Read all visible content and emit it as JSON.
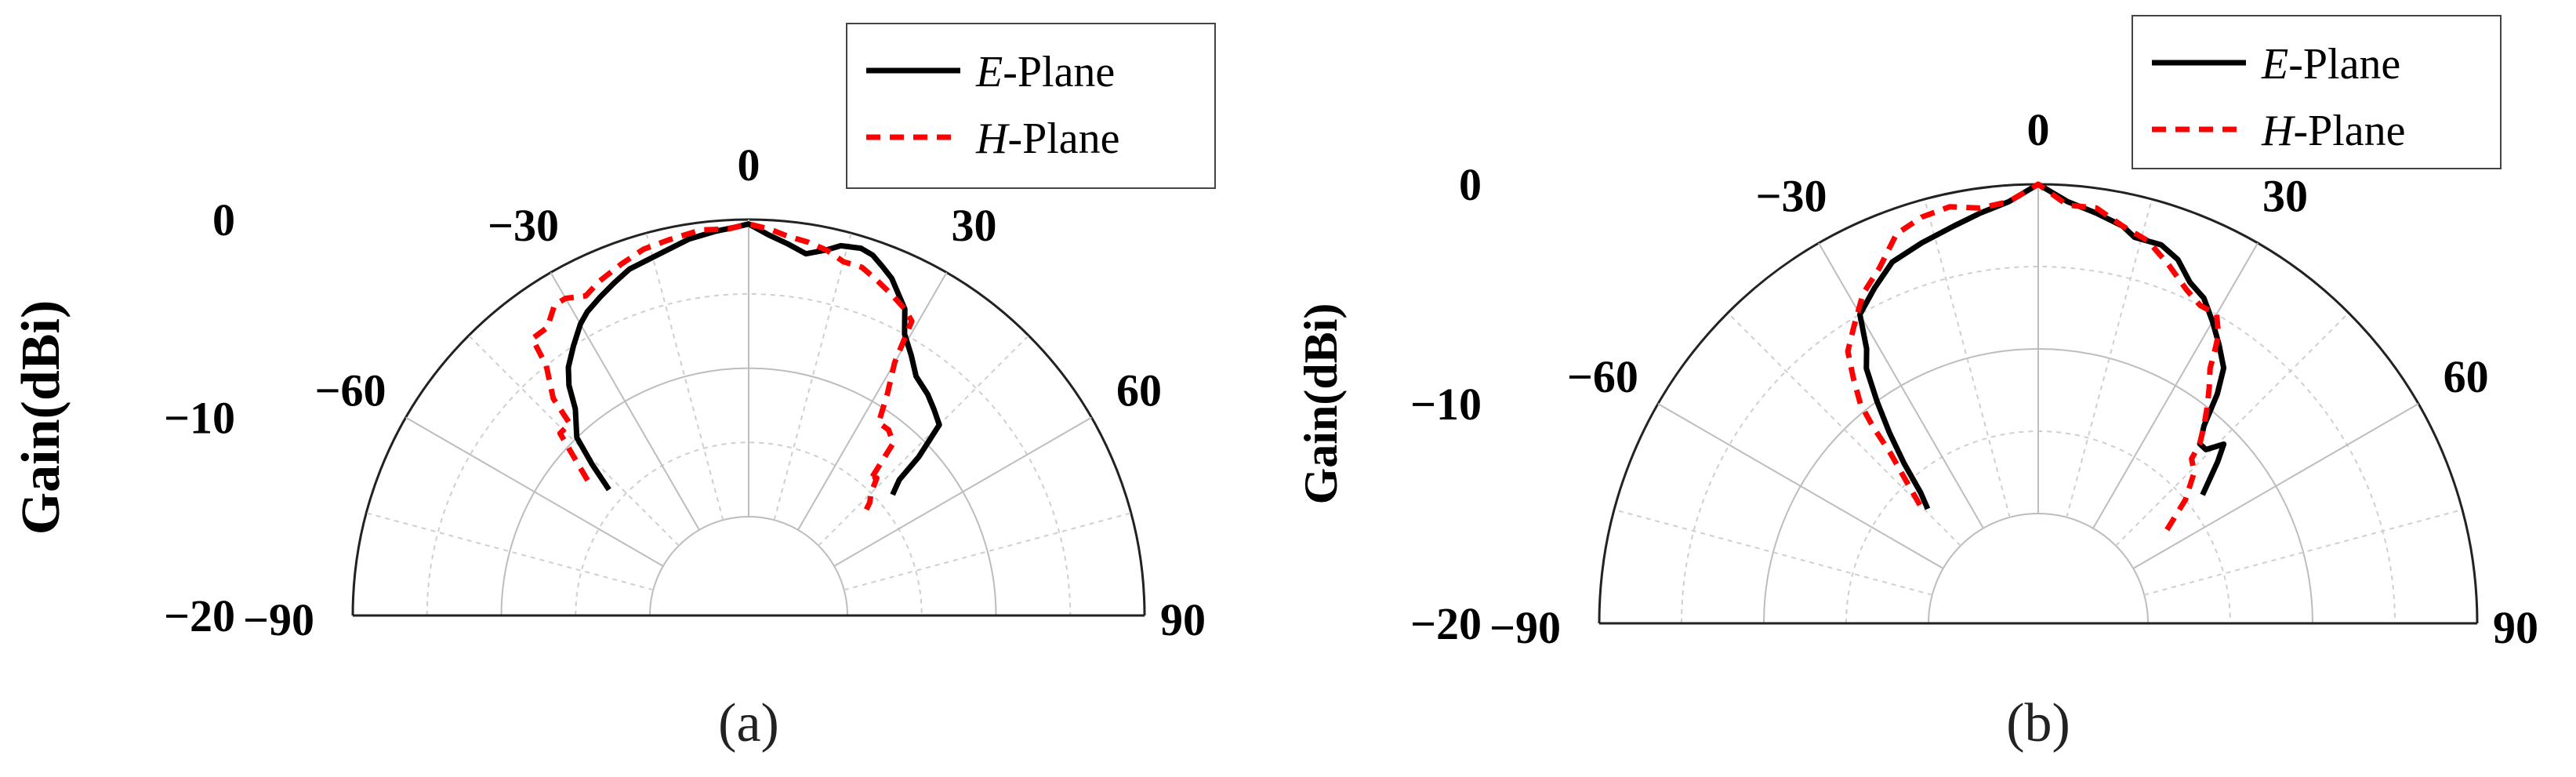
{
  "chart_data": [
    {
      "type": "polar-line",
      "caption": "(a)",
      "ylabel": "Gain(dBi)",
      "r_ticks": [
        "0",
        "−10",
        "−20"
      ],
      "theta_ticks": [
        "−90",
        "−60",
        "−30",
        "0",
        "30",
        "60",
        "90"
      ],
      "rlim": [
        -20,
        0
      ],
      "theta_range": [
        -90,
        90
      ],
      "legend": {
        "position": "top-right",
        "entries": [
          "E-Plane",
          "H-Plane"
        ]
      },
      "series": [
        {
          "name": "E-Plane",
          "color": "#000000",
          "style": "solid",
          "theta": [
            -48,
            -46,
            -44,
            -40,
            -38,
            -36,
            -33,
            -30,
            -28,
            -25,
            -22,
            -19,
            -14,
            -9,
            -5,
            -2,
            0,
            3,
            6,
            9,
            12,
            14,
            17,
            19,
            21,
            23,
            27,
            29,
            32,
            35,
            39,
            42,
            45,
            47,
            48,
            50
          ],
          "gain": [
            -14,
            -12,
            -10,
            -8.5,
            -7,
            -6,
            -5,
            -4,
            -3.5,
            -3,
            -2.5,
            -2,
            -1.6,
            -1,
            -0.7,
            -0.5,
            -0.3,
            -1,
            -1.5,
            -2,
            -1.5,
            -1,
            -0.8,
            -1,
            -1.5,
            -2,
            -3.5,
            -5,
            -6,
            -7,
            -7.5,
            -8,
            -8.5,
            -11,
            -13,
            -14
          ]
        },
        {
          "name": "H-Plane",
          "color": "#ff0000",
          "style": "dashed",
          "theta": [
            -50,
            -46,
            -43,
            -42,
            -39,
            -38,
            -35,
            -32,
            -30,
            -27,
            -24,
            -20,
            -16,
            -12,
            -7,
            -3,
            0,
            3,
            6,
            9,
            12,
            15,
            18,
            21,
            24,
            27,
            29,
            30,
            32,
            34,
            37,
            40,
            42,
            43,
            45,
            47,
            48
          ],
          "gain": [
            -12.5,
            -9,
            -9,
            -7,
            -5,
            -3,
            -3,
            -2,
            -2,
            -2.5,
            -2,
            -1.5,
            -1,
            -0.8,
            -0.5,
            -0.6,
            -0.3,
            -0.6,
            -1,
            -1.2,
            -1.5,
            -2,
            -2,
            -2.5,
            -3,
            -3.5,
            -4,
            -7,
            -9,
            -11,
            -11,
            -11.5,
            -14.5,
            -14,
            -15,
            -15.5,
            -16
          ]
        }
      ]
    },
    {
      "type": "polar-line",
      "caption": "(b)",
      "ylabel": "Gain(dBi)",
      "r_ticks": [
        "0",
        "−10",
        "−20"
      ],
      "theta_ticks": [
        "−90",
        "−60",
        "−30",
        "0",
        "30",
        "60",
        "90"
      ],
      "rlim": [
        -20,
        0
      ],
      "theta_range": [
        -90,
        90
      ],
      "legend": {
        "position": "top-right",
        "entries": [
          "E-Plane",
          "H-Plane"
        ]
      },
      "series": [
        {
          "name": "E-Plane",
          "color": "#000000",
          "style": "solid",
          "theta": [
            -44,
            -42,
            -40,
            -38,
            -36,
            -34,
            -32,
            -30,
            -26,
            -22,
            -17,
            -12,
            -8,
            -4,
            0,
            4,
            8,
            12,
            14,
            18,
            21,
            24,
            27,
            30,
            33,
            36,
            38,
            40,
            42,
            44,
            46,
            48,
            52
          ],
          "gain": [
            -17,
            -16,
            -14,
            -12,
            -10,
            -8,
            -7,
            -5,
            -4,
            -3,
            -2.5,
            -2,
            -1.5,
            -1,
            0,
            -1,
            -1.5,
            -2,
            -2.5,
            -2.5,
            -3,
            -4,
            -4.5,
            -5.5,
            -6.5,
            -7.5,
            -9,
            -11,
            -12,
            -12,
            -11,
            -12,
            -14
          ]
        },
        {
          "name": "H-Plane",
          "color": "#ff0000",
          "style": "dashed",
          "theta": [
            -45,
            -43,
            -41,
            -40,
            -39,
            -37,
            -35,
            -32,
            -28,
            -24,
            -20,
            -16,
            -12,
            -8,
            -4,
            0,
            4,
            8,
            12,
            16,
            20,
            24,
            27,
            30,
            32,
            33,
            34,
            36,
            38,
            40,
            42,
            43,
            46,
            50,
            54
          ],
          "gain": [
            -16.5,
            -15,
            -13,
            -11,
            -9.5,
            -8,
            -6.5,
            -5.5,
            -4,
            -3,
            -1.5,
            -1,
            -0.8,
            -1.2,
            -1,
            0,
            -1.2,
            -1.2,
            -2,
            -2.5,
            -3.5,
            -4.5,
            -5,
            -5,
            -6,
            -7,
            -8,
            -9,
            -10,
            -11,
            -12,
            -13,
            -13.5,
            -15,
            -17
          ]
        }
      ]
    }
  ]
}
